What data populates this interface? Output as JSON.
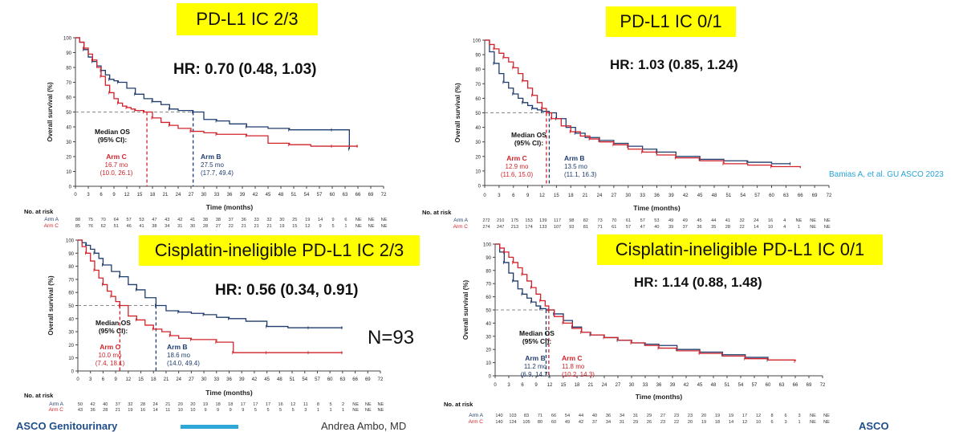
{
  "colors": {
    "arm_a": "#1f3c6e",
    "arm_b": "#1f3c6e",
    "arm_c": "#d2232a",
    "title_bg": "#ffff00",
    "dashed_ref": "#888888",
    "citation": "#2aa3d8"
  },
  "citation": "Bamias A, et al. GU ASCO 2023",
  "n_label": "N=93",
  "footer": {
    "left_text": "ASCO Genitourinary",
    "mid_text": "Andrea Ambo, MD",
    "right_text": "ASCO"
  },
  "chart_data": [
    {
      "type": "line",
      "title": "PD-L1 IC 2/3",
      "hr": "HR: 0.70 (0.48, 1.03)",
      "xlabel": "Time (months)",
      "ylabel": "Overall survival (%)",
      "xlim": [
        0,
        72
      ],
      "ylim": [
        0,
        100
      ],
      "x_ticks": [
        "0",
        "3",
        "6",
        "9",
        "12",
        "15",
        "18",
        "21",
        "24",
        "27",
        "30",
        "33",
        "36",
        "39",
        "42",
        "45",
        "48",
        "51",
        "54",
        "57",
        "60",
        "63",
        "66",
        "69",
        "72"
      ],
      "y_ticks": [
        "0",
        "10",
        "20",
        "30",
        "40",
        "50",
        "60",
        "70",
        "80",
        "90",
        "100"
      ],
      "median_label": "Median OS\n(95% CI):",
      "series": [
        {
          "name": "Arm B",
          "color": "#1f3c6e",
          "median": 27.5,
          "label_lines": [
            "Arm B",
            "27.5 mo",
            "(17.7, 49.4)"
          ],
          "x": [
            0,
            1,
            2,
            3,
            4,
            5,
            6,
            7,
            8,
            9,
            10,
            12,
            14,
            16,
            18,
            20,
            22,
            24,
            27.5,
            30,
            33,
            36,
            40,
            45,
            50,
            55,
            60,
            63,
            64
          ],
          "y": [
            100,
            97,
            92,
            87,
            84,
            81,
            78,
            75,
            72,
            71,
            70,
            66,
            62,
            59,
            57,
            55,
            52,
            51,
            50,
            45,
            44,
            42,
            40,
            39,
            38,
            38,
            38,
            38,
            25
          ]
        },
        {
          "name": "Arm C",
          "color": "#d2232a",
          "median": 16.7,
          "label_lines": [
            "Arm C",
            "16.7 mo",
            "(10.0, 26.1)"
          ],
          "x": [
            0,
            1,
            2,
            3,
            4,
            5,
            6,
            7,
            8,
            9,
            10,
            11,
            12,
            13,
            14,
            15,
            16,
            16.7,
            18,
            20,
            22,
            24,
            27,
            30,
            33,
            36,
            40,
            45,
            50,
            55,
            60,
            63,
            66
          ],
          "y": [
            100,
            97,
            93,
            89,
            85,
            80,
            74,
            68,
            63,
            59,
            56,
            54,
            53,
            52,
            51,
            51,
            50,
            50,
            46,
            43,
            41,
            39,
            37,
            36,
            35,
            35,
            34,
            29,
            28,
            27,
            27,
            27,
            27
          ]
        }
      ],
      "risk": {
        "header": "No. at risk",
        "rows": [
          {
            "label": "Arm A",
            "values": [
              "88",
              "75",
              "70",
              "64",
              "57",
              "53",
              "47",
              "43",
              "42",
              "41",
              "38",
              "38",
              "37",
              "36",
              "33",
              "32",
              "30",
              "25",
              "19",
              "14",
              "9",
              "6",
              "NE",
              "NE",
              "NE"
            ]
          },
          {
            "label": "Arm C",
            "values": [
              "85",
              "76",
              "62",
              "51",
              "46",
              "41",
              "38",
              "34",
              "31",
              "30",
              "28",
              "27",
              "22",
              "21",
              "21",
              "21",
              "19",
              "15",
              "12",
              "9",
              "5",
              "1",
              "NE",
              "NE",
              "NE"
            ]
          }
        ]
      }
    },
    {
      "type": "line",
      "title": "PD-L1 IC 0/1",
      "hr": "HR: 1.03 (0.85, 1.24)",
      "xlabel": "Time (months)",
      "ylabel": "Overall survival (%)",
      "xlim": [
        0,
        72
      ],
      "ylim": [
        0,
        100
      ],
      "x_ticks": [
        "0",
        "3",
        "6",
        "9",
        "12",
        "15",
        "18",
        "21",
        "24",
        "27",
        "30",
        "33",
        "36",
        "39",
        "42",
        "45",
        "48",
        "51",
        "54",
        "57",
        "60",
        "63",
        "66",
        "69",
        "72"
      ],
      "y_ticks": [
        "0",
        "10",
        "20",
        "30",
        "40",
        "50",
        "60",
        "70",
        "80",
        "90",
        "100"
      ],
      "median_label": "Median OS\n(95% CI):",
      "series": [
        {
          "name": "Arm B",
          "color": "#1f3c6e",
          "median": 13.5,
          "label_lines": [
            "Arm B",
            "13.5 mo",
            "(11.1, 16.3)"
          ],
          "x": [
            0,
            1,
            2,
            3,
            4,
            5,
            6,
            7,
            8,
            9,
            10,
            11,
            12,
            13.5,
            15,
            17,
            19,
            21,
            24,
            27,
            30,
            33,
            36,
            40,
            45,
            50,
            55,
            60,
            64
          ],
          "y": [
            100,
            92,
            84,
            77,
            71,
            67,
            63,
            60,
            57,
            55,
            53,
            52,
            51,
            50,
            46,
            40,
            36,
            33,
            31,
            29,
            27,
            25,
            23,
            20,
            18,
            17,
            16,
            15,
            15
          ]
        },
        {
          "name": "Arm C",
          "color": "#d2232a",
          "median": 12.9,
          "label_lines": [
            "Arm C",
            "12.9 mo",
            "(11.6, 15.0)"
          ],
          "x": [
            0,
            1,
            2,
            3,
            4,
            5,
            6,
            7,
            8,
            9,
            10,
            11,
            12,
            12.9,
            14,
            16,
            18,
            20,
            22,
            24,
            27,
            30,
            33,
            36,
            40,
            45,
            50,
            55,
            60,
            66
          ],
          "y": [
            100,
            97,
            94,
            91,
            88,
            85,
            81,
            77,
            72,
            67,
            62,
            57,
            53,
            50,
            46,
            41,
            37,
            34,
            32,
            30,
            28,
            25,
            23,
            21,
            19,
            17,
            15,
            14,
            13,
            12
          ]
        }
      ],
      "risk": {
        "header": "No. at risk",
        "rows": [
          {
            "label": "Arm A",
            "values": [
              "272",
              "210",
              "175",
              "153",
              "139",
              "117",
              "98",
              "82",
              "73",
              "70",
              "61",
              "57",
              "53",
              "49",
              "49",
              "45",
              "44",
              "41",
              "32",
              "24",
              "16",
              "4",
              "NE",
              "NE",
              "NE"
            ]
          },
          {
            "label": "Arm C",
            "values": [
              "274",
              "247",
              "213",
              "174",
              "133",
              "107",
              "93",
              "81",
              "71",
              "61",
              "57",
              "47",
              "40",
              "39",
              "37",
              "36",
              "35",
              "28",
              "22",
              "14",
              "10",
              "4",
              "1",
              "NE",
              "NE"
            ]
          }
        ]
      }
    },
    {
      "type": "line",
      "title": "Cisplatin-ineligible  PD-L1 IC 2/3",
      "hr": "HR: 0.56 (0.34, 0.91)",
      "xlabel": "Time (months)",
      "ylabel": "Overall survival (%)",
      "xlim": [
        0,
        72
      ],
      "ylim": [
        0,
        100
      ],
      "x_ticks": [
        "0",
        "3",
        "6",
        "9",
        "12",
        "15",
        "18",
        "21",
        "24",
        "27",
        "30",
        "33",
        "36",
        "39",
        "42",
        "45",
        "48",
        "51",
        "54",
        "57",
        "60",
        "63",
        "66",
        "69",
        "72"
      ],
      "y_ticks": [
        "0",
        "10",
        "20",
        "30",
        "40",
        "50",
        "60",
        "70",
        "80",
        "90",
        "100"
      ],
      "median_label": "Median OS\n(95% CI):",
      "series": [
        {
          "name": "Arm B",
          "color": "#1f3c6e",
          "median": 18.6,
          "label_lines": [
            "Arm B",
            "18.6 mo",
            "(14.0, 49.4)"
          ],
          "x": [
            0,
            1,
            2,
            3,
            4,
            5,
            6,
            8,
            10,
            12,
            14,
            16,
            18.6,
            21,
            24,
            27,
            30,
            33,
            36,
            40,
            45,
            50,
            55,
            60,
            63
          ],
          "y": [
            100,
            98,
            96,
            93,
            90,
            86,
            81,
            76,
            72,
            66,
            62,
            56,
            50,
            46,
            45,
            44,
            43,
            41,
            40,
            38,
            34,
            33,
            33,
            33,
            33
          ]
        },
        {
          "name": "Arm C",
          "color": "#d2232a",
          "median": 10.0,
          "label_lines": [
            "Arm C",
            "10.0 mo",
            "(7.4, 18.1)"
          ],
          "x": [
            0,
            1,
            2,
            3,
            4,
            5,
            6,
            7,
            8,
            9,
            10,
            12,
            14,
            16,
            18,
            20,
            22,
            24,
            27,
            30,
            33,
            36,
            37,
            40,
            45,
            50,
            55,
            60,
            63
          ],
          "y": [
            100,
            95,
            90,
            84,
            77,
            71,
            66,
            61,
            57,
            53,
            50,
            42,
            39,
            35,
            32,
            30,
            27,
            25,
            24,
            24,
            22,
            22,
            14,
            14,
            14,
            14,
            14,
            14,
            14
          ]
        }
      ],
      "risk": {
        "header": "No. at risk",
        "rows": [
          {
            "label": "Arm A",
            "values": [
              "50",
              "42",
              "40",
              "37",
              "32",
              "28",
              "24",
              "21",
              "20",
              "20",
              "19",
              "18",
              "18",
              "17",
              "17",
              "17",
              "16",
              "12",
              "11",
              "8",
              "5",
              "2",
              "NE",
              "NE",
              "NE"
            ]
          },
          {
            "label": "Arm C",
            "values": [
              "43",
              "36",
              "28",
              "21",
              "19",
              "16",
              "14",
              "11",
              "10",
              "10",
              "9",
              "9",
              "9",
              "9",
              "5",
              "5",
              "5",
              "5",
              "3",
              "1",
              "1",
              "1",
              "NE",
              "NE",
              "NE"
            ]
          }
        ]
      }
    },
    {
      "type": "line",
      "title": "Cisplatin-ineligible  PD-L1 IC 0/1",
      "hr": "HR: 1.14 (0.88, 1.48)",
      "xlabel": "Time (months)",
      "ylabel": "Overall survival (%)",
      "xlim": [
        0,
        72
      ],
      "ylim": [
        0,
        100
      ],
      "x_ticks": [
        "0",
        "3",
        "6",
        "9",
        "12",
        "15",
        "18",
        "21",
        "24",
        "27",
        "30",
        "33",
        "36",
        "39",
        "42",
        "45",
        "48",
        "51",
        "54",
        "57",
        "60",
        "63",
        "66",
        "69",
        "72"
      ],
      "y_ticks": [
        "0",
        "10",
        "20",
        "30",
        "40",
        "50",
        "60",
        "70",
        "80",
        "90",
        "100"
      ],
      "median_label": "Median OS\n(95% CI):",
      "series": [
        {
          "name": "Arm B",
          "color": "#1f3c6e",
          "median": 11.2,
          "label_lines": [
            "Arm B",
            "11.2 mo",
            "(6.9, 14.7)"
          ],
          "x": [
            0,
            1,
            2,
            3,
            4,
            5,
            6,
            7,
            8,
            9,
            10,
            11.2,
            13,
            15,
            17,
            19,
            21,
            24,
            27,
            30,
            33,
            36,
            40,
            45,
            50,
            55,
            60
          ],
          "y": [
            100,
            94,
            86,
            78,
            72,
            66,
            62,
            59,
            56,
            53,
            51,
            50,
            47,
            42,
            37,
            33,
            31,
            29,
            27,
            25,
            24,
            23,
            20,
            18,
            16,
            14,
            12
          ]
        },
        {
          "name": "Arm C",
          "color": "#d2232a",
          "median": 11.8,
          "label_lines": [
            "Arm C",
            "11.8 mo",
            "(10.2, 14.3)"
          ],
          "x": [
            0,
            1,
            2,
            3,
            4,
            5,
            6,
            7,
            8,
            9,
            10,
            11,
            11.8,
            13,
            15,
            17,
            19,
            21,
            24,
            27,
            30,
            33,
            36,
            40,
            45,
            50,
            55,
            60,
            66
          ],
          "y": [
            100,
            97,
            94,
            90,
            86,
            82,
            77,
            72,
            67,
            62,
            57,
            53,
            50,
            45,
            40,
            36,
            33,
            31,
            29,
            27,
            25,
            23,
            21,
            19,
            17,
            15,
            13,
            12,
            11
          ]
        }
      ],
      "risk": {
        "header": "No. at risk",
        "rows": [
          {
            "label": "Arm A",
            "values": [
              "140",
              "103",
              "83",
              "71",
              "66",
              "54",
              "44",
              "40",
              "36",
              "34",
              "31",
              "29",
              "27",
              "23",
              "23",
              "20",
              "19",
              "19",
              "17",
              "12",
              "8",
              "6",
              "3",
              "NE",
              "NE"
            ]
          },
          {
            "label": "Arm C",
            "values": [
              "140",
              "124",
              "105",
              "80",
              "60",
              "49",
              "42",
              "37",
              "34",
              "31",
              "29",
              "26",
              "23",
              "22",
              "20",
              "19",
              "18",
              "14",
              "12",
              "10",
              "6",
              "3",
              "1",
              "NE",
              "NE"
            ]
          }
        ]
      }
    }
  ]
}
